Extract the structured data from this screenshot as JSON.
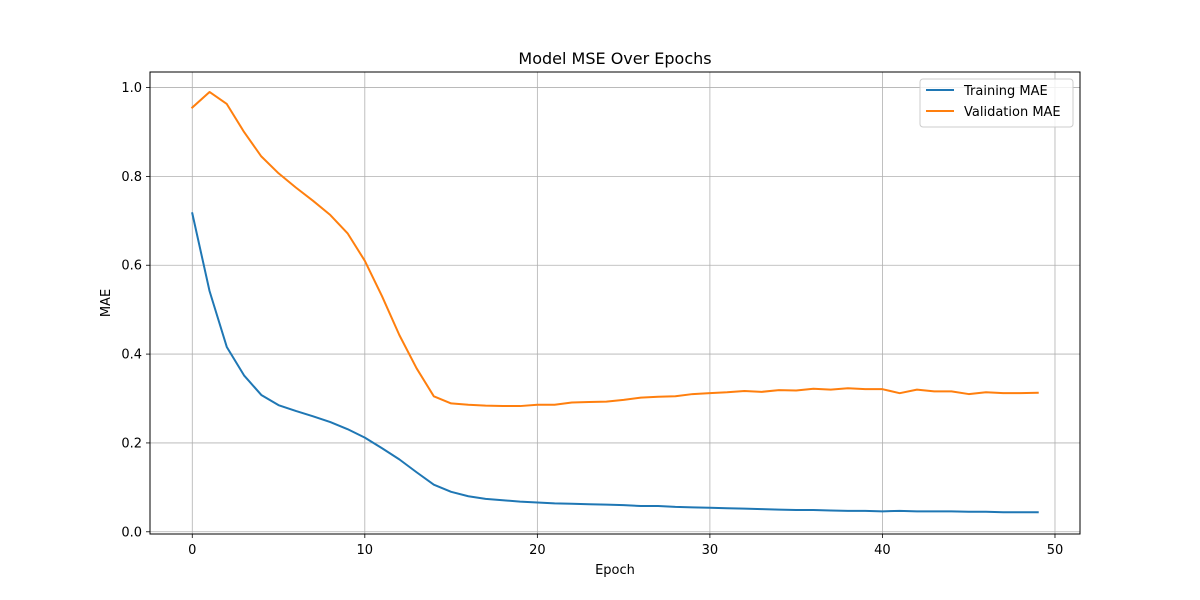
{
  "chart_data": {
    "type": "line",
    "title": "Model MSE Over Epochs",
    "xlabel": "Epoch",
    "ylabel": "MAE",
    "xlim": [
      -2.45,
      51.45
    ],
    "ylim": [
      -0.005,
      1.035
    ],
    "xticks": [
      0,
      10,
      20,
      30,
      40,
      50
    ],
    "yticks": [
      0.0,
      0.2,
      0.4,
      0.6,
      0.8,
      1.0
    ],
    "ytick_labels": [
      "0.0",
      "0.2",
      "0.4",
      "0.6",
      "0.8",
      "1.0"
    ],
    "grid": true,
    "legend_position": "top-right",
    "x": [
      0,
      1,
      2,
      3,
      4,
      5,
      6,
      7,
      8,
      9,
      10,
      11,
      12,
      13,
      14,
      15,
      16,
      17,
      18,
      19,
      20,
      21,
      22,
      23,
      24,
      25,
      26,
      27,
      28,
      29,
      30,
      31,
      32,
      33,
      34,
      35,
      36,
      37,
      38,
      39,
      40,
      41,
      42,
      43,
      44,
      45,
      46,
      47,
      48,
      49
    ],
    "series": [
      {
        "name": "Training MAE",
        "color": "#1f77b4",
        "values": [
          0.717,
          0.542,
          0.416,
          0.352,
          0.308,
          0.285,
          0.272,
          0.26,
          0.247,
          0.231,
          0.212,
          0.188,
          0.163,
          0.134,
          0.106,
          0.09,
          0.08,
          0.074,
          0.071,
          0.068,
          0.066,
          0.064,
          0.063,
          0.062,
          0.061,
          0.06,
          0.058,
          0.058,
          0.056,
          0.055,
          0.054,
          0.053,
          0.052,
          0.051,
          0.05,
          0.049,
          0.049,
          0.048,
          0.047,
          0.047,
          0.046,
          0.047,
          0.046,
          0.046,
          0.046,
          0.045,
          0.045,
          0.044,
          0.044,
          0.044
        ]
      },
      {
        "name": "Validation MAE",
        "color": "#ff7f0e",
        "values": [
          0.955,
          0.99,
          0.963,
          0.9,
          0.845,
          0.807,
          0.775,
          0.745,
          0.713,
          0.672,
          0.61,
          0.53,
          0.443,
          0.368,
          0.305,
          0.289,
          0.286,
          0.284,
          0.283,
          0.283,
          0.286,
          0.286,
          0.291,
          0.292,
          0.293,
          0.297,
          0.302,
          0.304,
          0.305,
          0.31,
          0.312,
          0.314,
          0.317,
          0.315,
          0.319,
          0.318,
          0.322,
          0.32,
          0.323,
          0.321,
          0.321,
          0.312,
          0.32,
          0.316,
          0.316,
          0.31,
          0.314,
          0.312,
          0.312,
          0.313
        ]
      }
    ]
  }
}
